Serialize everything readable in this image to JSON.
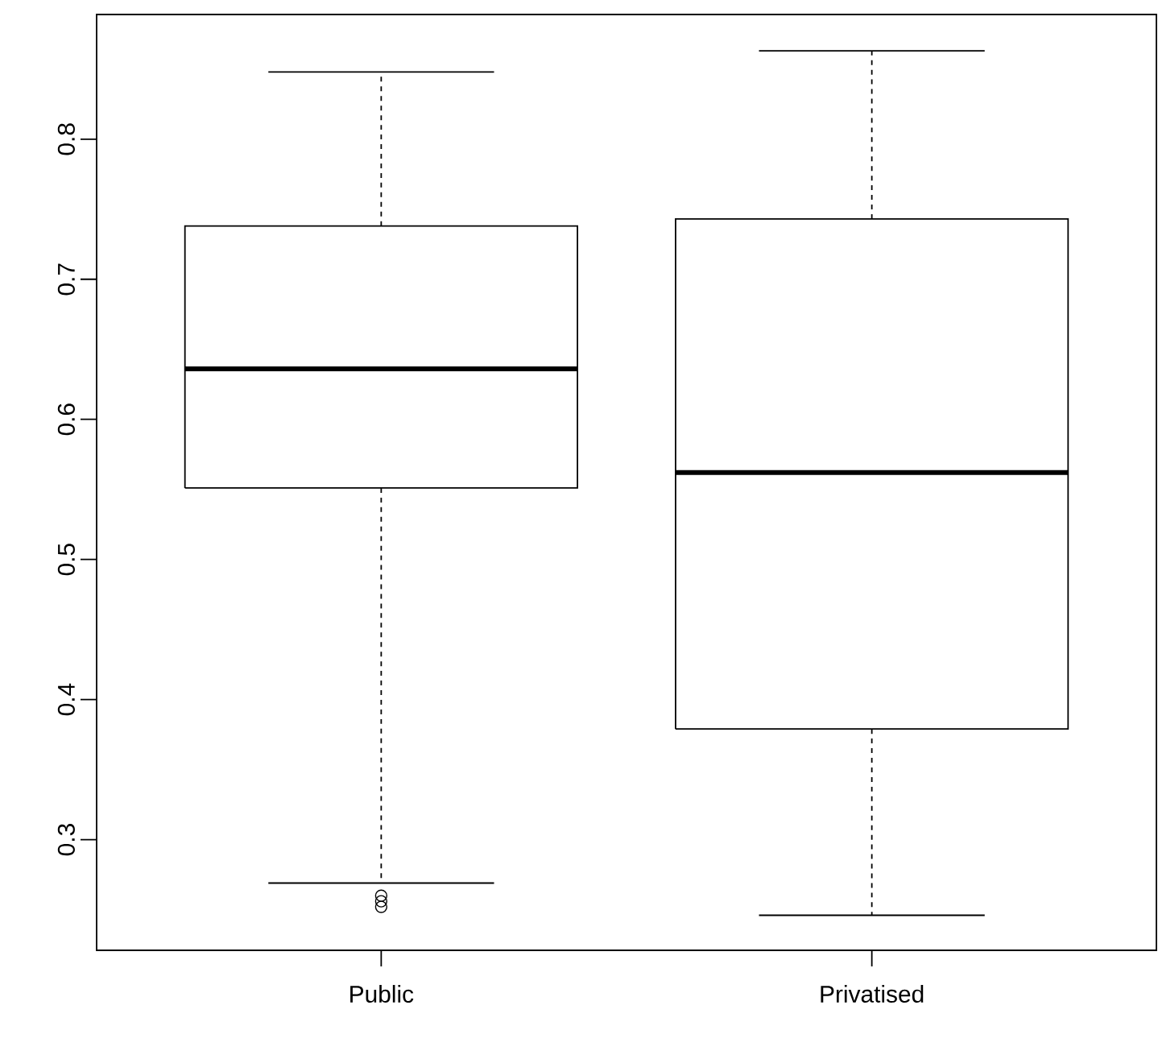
{
  "chart_data": {
    "type": "box",
    "categories": [
      "Public",
      "Privatised"
    ],
    "boxes": [
      {
        "low": 0.269,
        "q1": 0.551,
        "median": 0.636,
        "q3": 0.738,
        "high": 0.848,
        "outliers": [
          0.26,
          0.256,
          0.252
        ]
      },
      {
        "low": 0.246,
        "q1": 0.379,
        "median": 0.562,
        "q3": 0.743,
        "high": 0.863
      }
    ],
    "ylim": [
      0.221,
      0.889
    ],
    "yticks": [
      0.3,
      0.4,
      0.5,
      0.6,
      0.7,
      0.8
    ],
    "grid": false
  }
}
